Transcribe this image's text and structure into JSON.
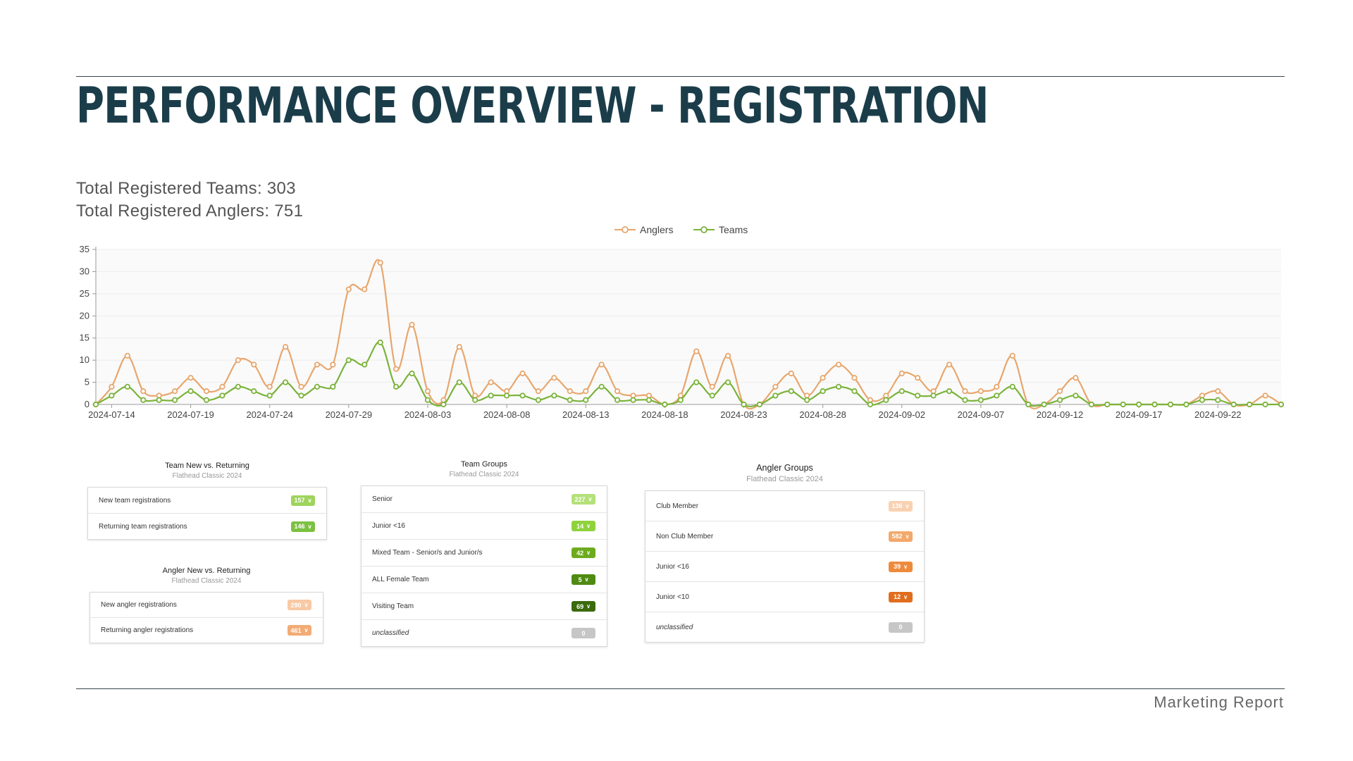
{
  "page": {
    "title": "PERFORMANCE OVERVIEW - REGISTRATION",
    "stats": {
      "teams": "Total Registered Teams: 303",
      "anglers": "Total Registered Anglers: 751"
    },
    "footer": "Marketing Report"
  },
  "chart_data": {
    "type": "line",
    "title": "",
    "xlabel": "",
    "ylabel": "",
    "ylim": [
      0,
      35
    ],
    "yticks": [
      0,
      5,
      10,
      15,
      20,
      25,
      30,
      35
    ],
    "x_tick_labels": [
      "2024-07-14",
      "2024-07-19",
      "2024-07-24",
      "2024-07-29",
      "2024-08-03",
      "2024-08-08",
      "2024-08-13",
      "2024-08-18",
      "2024-08-23",
      "2024-08-28",
      "2024-09-02",
      "2024-09-07",
      "2024-09-12",
      "2024-09-17",
      "2024-09-22"
    ],
    "x_start": "2024-07-13",
    "x_end": "2024-09-25",
    "legend_position": "top-center",
    "grid": true,
    "series": [
      {
        "name": "Anglers",
        "color": "#e8a66d",
        "values": [
          0,
          4,
          11,
          3,
          2,
          3,
          6,
          3,
          4,
          10,
          9,
          4,
          13,
          4,
          9,
          9,
          26,
          26,
          32,
          8,
          18,
          3,
          1,
          13,
          2,
          5,
          3,
          7,
          3,
          6,
          3,
          3,
          9,
          3,
          2,
          2,
          0,
          2,
          12,
          4,
          11,
          0,
          0,
          4,
          7,
          2,
          6,
          9,
          6,
          1,
          2,
          7,
          6,
          3,
          9,
          3,
          3,
          4,
          11,
          0,
          0,
          3,
          6,
          0,
          0,
          0,
          0,
          0,
          0,
          0,
          2,
          3,
          0,
          0,
          2,
          0
        ]
      },
      {
        "name": "Teams",
        "color": "#7ab33a",
        "values": [
          0,
          2,
          4,
          1,
          1,
          1,
          3,
          1,
          2,
          4,
          3,
          2,
          5,
          2,
          4,
          4,
          10,
          9,
          14,
          4,
          7,
          1,
          0,
          5,
          1,
          2,
          2,
          2,
          1,
          2,
          1,
          1,
          4,
          1,
          1,
          1,
          0,
          1,
          5,
          2,
          5,
          0,
          0,
          2,
          3,
          1,
          3,
          4,
          3,
          0,
          1,
          3,
          2,
          2,
          3,
          1,
          1,
          2,
          4,
          0,
          0,
          1,
          2,
          0,
          0,
          0,
          0,
          0,
          0,
          0,
          1,
          1,
          0,
          0,
          0,
          0
        ]
      }
    ]
  },
  "panels": {
    "team_new": {
      "title": "Team New vs. Returning",
      "subtitle": "Flathead Classic 2024",
      "rows": [
        {
          "label": "New team registrations",
          "value": "157",
          "color": "#9fd45c"
        },
        {
          "label": "Returning team registrations",
          "value": "146",
          "color": "#7cc142"
        }
      ]
    },
    "angler_new": {
      "title": "Angler New vs. Returning",
      "subtitle": "Flathead Classic 2024",
      "rows": [
        {
          "label": "New angler registrations",
          "value": "290",
          "color": "#f7c9a5"
        },
        {
          "label": "Returning angler registrations",
          "value": "461",
          "color": "#f2ab74"
        }
      ]
    },
    "team_groups": {
      "title": "Team Groups",
      "subtitle": "Flathead Classic 2024",
      "rows": [
        {
          "label": "Senior",
          "value": "227",
          "color": "#b5e07a"
        },
        {
          "label": "Junior <16",
          "value": "14",
          "color": "#8fd23c"
        },
        {
          "label": "Mixed Team - Senior/s and Junior/s",
          "value": "42",
          "color": "#6cab1e"
        },
        {
          "label": "ALL Female Team",
          "value": "5",
          "color": "#4f8b12"
        },
        {
          "label": "Visiting Team",
          "value": "69",
          "color": "#3a6a0c"
        },
        {
          "label": "unclassified",
          "value": "0",
          "color": "#c6c6c6",
          "italic": true
        }
      ]
    },
    "angler_groups": {
      "title": "Angler Groups",
      "subtitle": "Flathead Classic 2024",
      "rows": [
        {
          "label": "Club Member",
          "value": "136",
          "color": "#f9d1b0"
        },
        {
          "label": "Non Club Member",
          "value": "582",
          "color": "#f3a86a"
        },
        {
          "label": "Junior <16",
          "value": "39",
          "color": "#ee8a3a"
        },
        {
          "label": "Junior <10",
          "value": "12",
          "color": "#e06d1d"
        },
        {
          "label": "unclassified",
          "value": "0",
          "color": "#c6c6c6",
          "italic": true
        }
      ]
    }
  }
}
